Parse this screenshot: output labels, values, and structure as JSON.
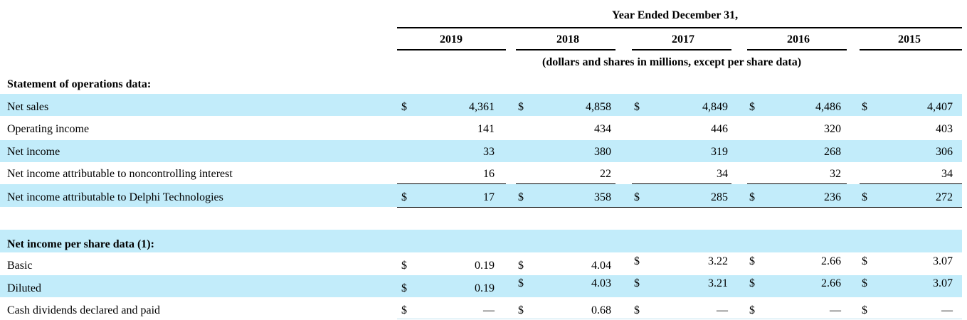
{
  "header": {
    "group_title": "Year Ended December 31,",
    "years": [
      "2019",
      "2018",
      "2017",
      "2016",
      "2015"
    ],
    "units_note": "(dollars and shares in millions, except per share data)"
  },
  "sections": {
    "operations": "Statement of operations data:",
    "per_share": "Net income per share data (1):"
  },
  "currency_symbol": "$",
  "rows": [
    {
      "label": "Net sales",
      "values": [
        "4,361",
        "4,858",
        "4,849",
        "4,486",
        "4,407"
      ]
    },
    {
      "label": "Operating income",
      "values": [
        "141",
        "434",
        "446",
        "320",
        "403"
      ]
    },
    {
      "label": "Net income",
      "values": [
        "33",
        "380",
        "319",
        "268",
        "306"
      ]
    },
    {
      "label": "Net income attributable to noncontrolling interest",
      "values": [
        "16",
        "22",
        "34",
        "32",
        "34"
      ]
    },
    {
      "label": "Net income attributable to Delphi Technologies",
      "values": [
        "17",
        "358",
        "285",
        "236",
        "272"
      ]
    },
    {
      "label": "Basic",
      "values": [
        "0.19",
        "4.04",
        "3.22",
        "2.66",
        "3.07"
      ]
    },
    {
      "label": "Diluted",
      "values": [
        "0.19",
        "4.03",
        "3.21",
        "2.66",
        "3.07"
      ]
    },
    {
      "label": "Cash dividends declared and paid",
      "values": [
        "—",
        "0.68",
        "—",
        "—",
        "—"
      ]
    }
  ],
  "colors": {
    "band": "#c2ecfa",
    "text": "#000000"
  }
}
